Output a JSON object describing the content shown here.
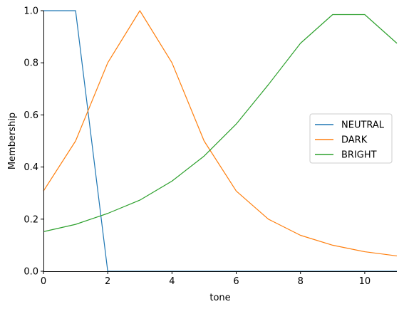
{
  "chart_data": {
    "type": "line",
    "xlabel": "tone",
    "ylabel": "Membership",
    "xlim": [
      0,
      11
    ],
    "ylim": [
      0,
      1.0
    ],
    "xticks": [
      "0",
      "2",
      "4",
      "6",
      "8",
      "10"
    ],
    "yticks": [
      "0.0",
      "0.2",
      "0.4",
      "0.6",
      "0.8",
      "1.0"
    ],
    "grid": false,
    "legend_position": "center-right",
    "series": [
      {
        "name": "NEUTRAL",
        "color": "#1f77b4",
        "x": [
          0,
          1,
          2,
          3,
          4,
          5,
          6,
          7,
          8,
          9,
          10,
          11
        ],
        "y": [
          1.0,
          1.0,
          0.0,
          0.0,
          0.0,
          0.0,
          0.0,
          0.0,
          0.0,
          0.0,
          0.0,
          0.0
        ]
      },
      {
        "name": "DARK",
        "color": "#ff7f0e",
        "x": [
          0,
          1,
          2,
          3,
          4,
          5,
          6,
          7,
          8,
          9,
          10,
          11
        ],
        "y": [
          0.308,
          0.5,
          0.8,
          1.0,
          0.8,
          0.5,
          0.308,
          0.2,
          0.138,
          0.1,
          0.075,
          0.059
        ]
      },
      {
        "name": "BRIGHT",
        "color": "#2ca02c",
        "x": [
          0,
          1,
          2,
          3,
          4,
          5,
          6,
          7,
          8,
          9,
          10,
          11
        ],
        "y": [
          0.152,
          0.18,
          0.222,
          0.273,
          0.346,
          0.442,
          0.565,
          0.716,
          0.875,
          0.985,
          0.985,
          0.875
        ]
      }
    ]
  }
}
